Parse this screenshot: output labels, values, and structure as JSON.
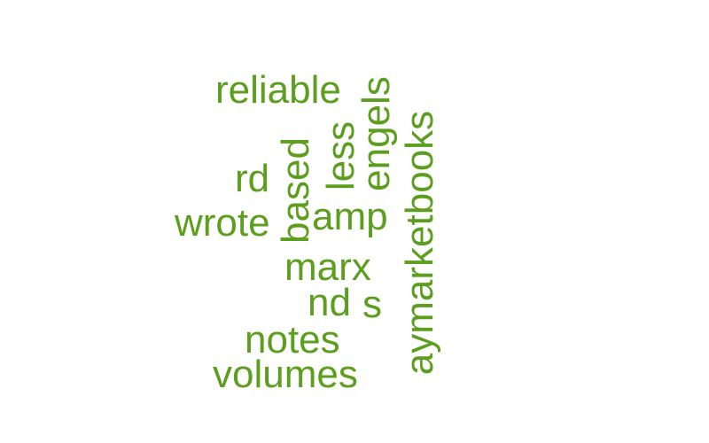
{
  "colors": {
    "word": "#5c9e1e",
    "background": "#ffffff"
  },
  "words": {
    "reliable": "reliable",
    "engels": "engels",
    "aymarketbooks": "aymarketbooks",
    "less": "less",
    "based": "based",
    "rd": "rd",
    "wrote": "wrote",
    "amp": "amp",
    "marx": "marx",
    "nd": "nd",
    "s": "s",
    "notes": "notes",
    "volumes": "volumes"
  }
}
